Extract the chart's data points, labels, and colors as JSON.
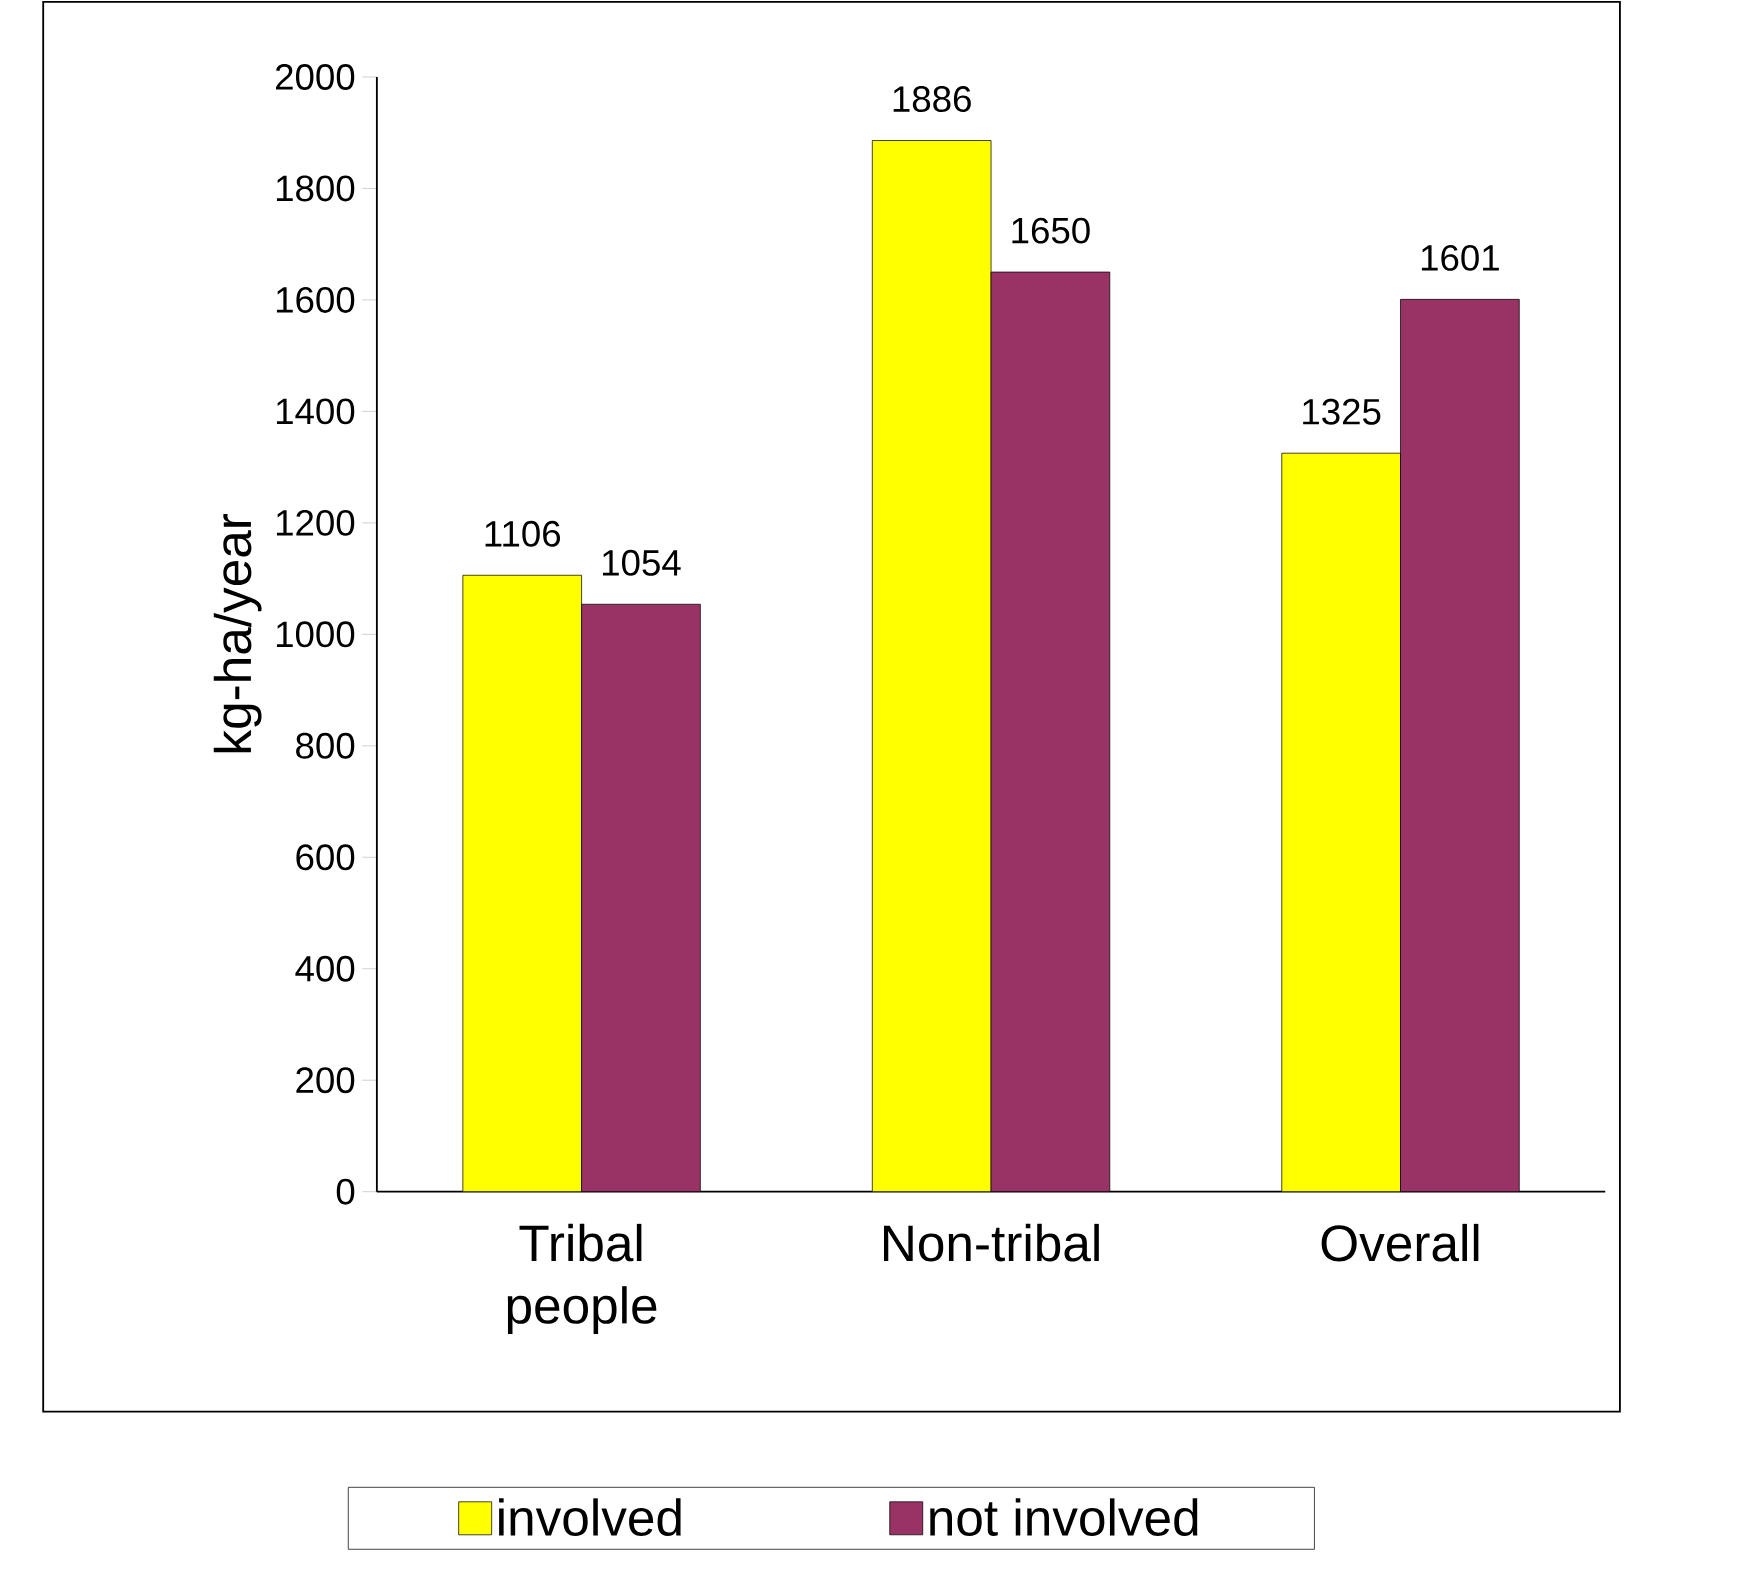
{
  "chart_data": {
    "type": "bar",
    "ylabel": "kg-ha/year",
    "categories": [
      "Tribal people",
      "Non-tribal",
      "Overall"
    ],
    "series": [
      {
        "name": "involved",
        "color": "#ffff00",
        "values": [
          1106,
          1886,
          1325
        ]
      },
      {
        "name": "not involved",
        "color": "#993366",
        "values": [
          1054,
          1650,
          1601
        ]
      }
    ],
    "ylim": [
      0,
      2000
    ],
    "yticks": [
      0,
      200,
      400,
      600,
      800,
      1000,
      1200,
      1400,
      1600,
      1800,
      2000
    ],
    "grid": false,
    "legend": "bottom",
    "data_labels": true
  }
}
